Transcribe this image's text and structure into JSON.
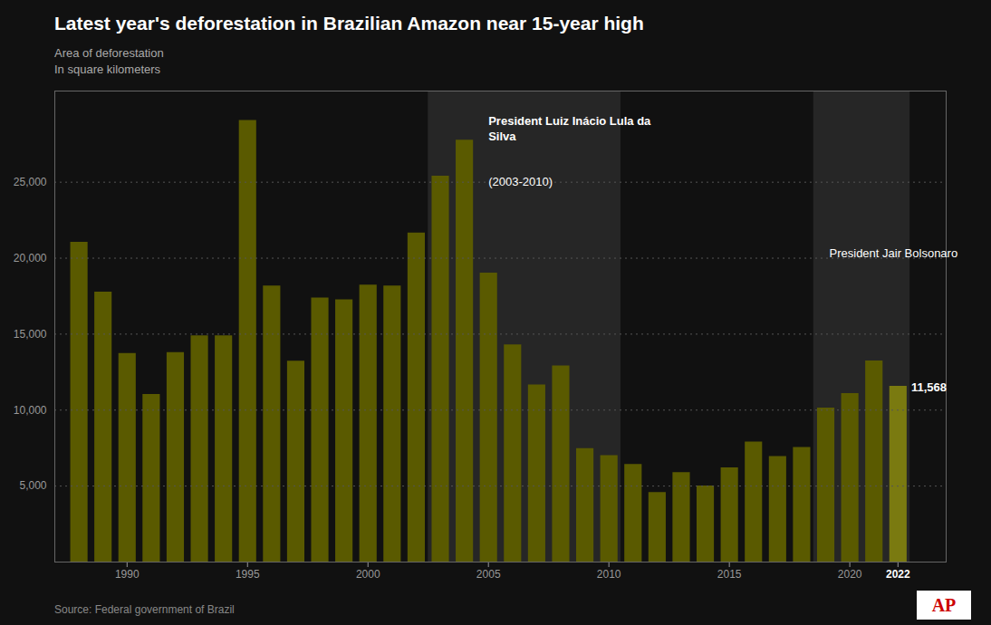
{
  "chart_data": {
    "type": "bar",
    "title": "Latest year's deforestation in Brazilian Amazon near 15-year high",
    "subtitle": [
      "Area of deforestation",
      "In square kilometers"
    ],
    "source": "Source: Federal government of Brazil",
    "logo": "AP",
    "background": "#111111",
    "x": [
      1988,
      1989,
      1990,
      1991,
      1992,
      1993,
      1994,
      1995,
      1996,
      1997,
      1998,
      1999,
      2000,
      2001,
      2002,
      2003,
      2004,
      2005,
      2006,
      2007,
      2008,
      2009,
      2010,
      2011,
      2012,
      2013,
      2014,
      2015,
      2016,
      2017,
      2018,
      2019,
      2020,
      2021,
      2022
    ],
    "values": [
      21050,
      17770,
      13730,
      11030,
      13786,
      14896,
      14896,
      29059,
      18161,
      13227,
      17383,
      17259,
      18226,
      18165,
      21651,
      25396,
      27772,
      19014,
      14286,
      11651,
      12911,
      7464,
      7000,
      6418,
      4571,
      5891,
      5012,
      6207,
      7893,
      6947,
      7536,
      10129,
      11088,
      13235,
      11568
    ],
    "colors": [
      "#5a5a00",
      "#5a5a00",
      "#5a5a00",
      "#5a5a00",
      "#5a5a00",
      "#5a5a00",
      "#5a5a00",
      "#5a5a00",
      "#5a5a00",
      "#5a5a00",
      "#5a5a00",
      "#5a5a00",
      "#5a5a00",
      "#5a5a00",
      "#5a5a00",
      "#5a5a00",
      "#5a5a00",
      "#5a5a00",
      "#5a5a00",
      "#5a5a00",
      "#5a5a00",
      "#5a5a00",
      "#5a5a00",
      "#5a5a00",
      "#5a5a00",
      "#5a5a00",
      "#5a5a00",
      "#5a5a00",
      "#5a5a00",
      "#5a5a00",
      "#5a5a00",
      "#5a5a00",
      "#5a5a00",
      "#5a5a00",
      "#7a7a10"
    ],
    "xlim": [
      1987.0,
      2024.0
    ],
    "xticks": [
      1990,
      1995,
      2000,
      2005,
      2010,
      2015,
      2020,
      2022
    ],
    "ylim": [
      0,
      31000
    ],
    "yticks": [
      {
        "value": 5000,
        "label": "5,000"
      },
      {
        "value": 10000,
        "label": "10,000"
      },
      {
        "value": 15000,
        "label": "15,000"
      },
      {
        "value": 20000,
        "label": "20,000"
      },
      {
        "value": 25000,
        "label": "25,000"
      }
    ],
    "grid": true,
    "periods": [
      {
        "start": 2003,
        "end": 2010,
        "color": "#262626"
      },
      {
        "start": 2019,
        "end": 2022,
        "color": "#262626"
      }
    ],
    "annotations": [
      {
        "text": "President Luiz Inácio Lula da\nSilva",
        "x": 2005.0,
        "y": 29500
      },
      {
        "text": "(2003-2010)",
        "x": 2005.0,
        "y": 25500
      },
      {
        "text": "President Jair Bolsonaro",
        "x": 2019.15,
        "y": 20800
      },
      {
        "text": "11,568",
        "x": 2022.55,
        "y": 11568
      }
    ]
  }
}
